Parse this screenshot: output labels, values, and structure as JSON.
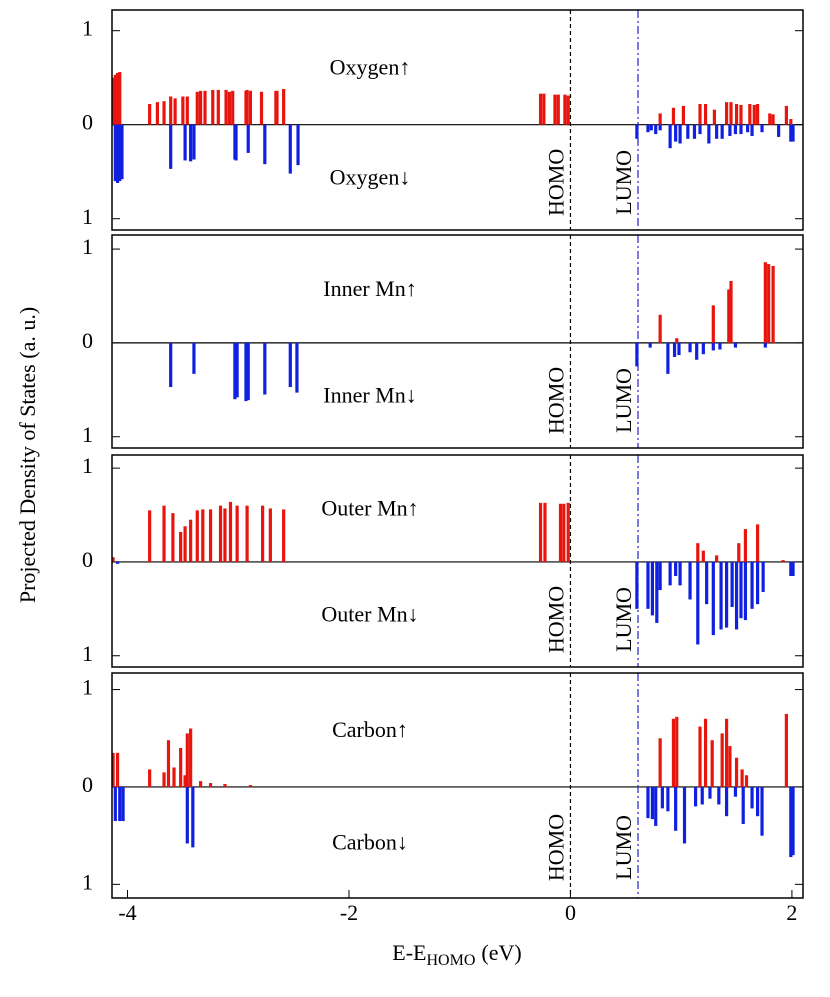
{
  "ylabel": "Projected Density of States (a. u.)",
  "chart_data": [
    {
      "type": "bar",
      "xlim": [
        -4.14,
        2.1
      ],
      "ylim": [
        -1.12,
        1.22
      ],
      "yticks": [
        {
          "value": -1,
          "label": "1"
        },
        0,
        1
      ],
      "markers": [
        {
          "x": 0,
          "label": "HOMO",
          "color": "#000000",
          "dash": "dashed"
        },
        {
          "x": 0.61,
          "label": "LUMO",
          "color": "#2222cc",
          "dash": "dashdot"
        }
      ],
      "series": [
        {
          "name": "Oxygen↑",
          "color": "#e8150f",
          "x": [
            -4.13,
            -4.11,
            -4.09,
            -4.07,
            -3.8,
            -3.73,
            -3.67,
            -3.61,
            -3.57,
            -3.5,
            -3.46,
            -3.37,
            -3.34,
            -3.3,
            -3.23,
            -3.18,
            -3.11,
            -3.08,
            -3.05,
            -2.93,
            -2.92,
            -2.89,
            -2.79,
            -2.66,
            -2.65,
            -2.59,
            -0.27,
            -0.24,
            -0.14,
            -0.11,
            -0.05,
            -0.02,
            0.81,
            0.93,
            1.02,
            1.17,
            1.22,
            1.3,
            1.41,
            1.45,
            1.5,
            1.54,
            1.62,
            1.66,
            1.69,
            1.8,
            1.83,
            1.95,
            1.99
          ],
          "values": [
            0.5,
            0.53,
            0.55,
            0.56,
            0.22,
            0.24,
            0.25,
            0.3,
            0.28,
            0.3,
            0.3,
            0.35,
            0.36,
            0.36,
            0.37,
            0.37,
            0.37,
            0.35,
            0.36,
            0.36,
            0.37,
            0.36,
            0.35,
            0.36,
            0.36,
            0.38,
            0.33,
            0.33,
            0.32,
            0.32,
            0.32,
            0.31,
            0.12,
            0.18,
            0.2,
            0.22,
            0.22,
            0.16,
            0.24,
            0.24,
            0.22,
            0.21,
            0.22,
            0.21,
            0.22,
            0.12,
            0.11,
            0.2,
            0.06
          ]
        },
        {
          "name": "Oxygen↓",
          "color": "#1020e0",
          "x": [
            -4.11,
            -4.09,
            -4.07,
            -4.05,
            -3.61,
            -3.48,
            -3.43,
            -3.4,
            -3.03,
            -3.02,
            -2.91,
            -2.76,
            -2.53,
            -2.46,
            0.6,
            0.7,
            0.73,
            0.77,
            0.81,
            0.9,
            0.95,
            0.99,
            1.06,
            1.12,
            1.17,
            1.25,
            1.32,
            1.37,
            1.44,
            1.49,
            1.54,
            1.6,
            1.64,
            1.73,
            1.88,
            1.99,
            2.01
          ],
          "values": [
            -0.6,
            -0.62,
            -0.6,
            -0.58,
            -0.47,
            -0.38,
            -0.39,
            -0.37,
            -0.37,
            -0.38,
            -0.3,
            -0.42,
            -0.52,
            -0.43,
            -0.15,
            -0.08,
            -0.06,
            -0.1,
            -0.06,
            -0.25,
            -0.18,
            -0.2,
            -0.15,
            -0.15,
            -0.1,
            -0.2,
            -0.15,
            -0.15,
            -0.12,
            -0.1,
            -0.1,
            -0.08,
            -0.12,
            -0.08,
            -0.13,
            -0.18,
            -0.18
          ]
        }
      ]
    },
    {
      "type": "bar",
      "xlim": [
        -4.14,
        2.1
      ],
      "ylim": [
        -1.12,
        1.15
      ],
      "yticks": [
        {
          "value": -1,
          "label": "1"
        },
        0,
        1
      ],
      "markers": [
        {
          "x": 0,
          "label": "HOMO",
          "color": "#000000",
          "dash": "dashed"
        },
        {
          "x": 0.61,
          "label": "LUMO",
          "color": "#2222cc",
          "dash": "dashdot"
        }
      ],
      "series": [
        {
          "name": "Inner Mn↑",
          "color": "#e8150f",
          "x": [
            0.81,
            0.96,
            1.29,
            1.43,
            1.45,
            1.76,
            1.79,
            1.83
          ],
          "values": [
            0.3,
            0.05,
            0.4,
            0.57,
            0.66,
            0.86,
            0.84,
            0.82
          ]
        },
        {
          "name": "Inner Mn↓",
          "color": "#1020e0",
          "x": [
            -3.61,
            -3.4,
            -3.03,
            -3.01,
            -2.93,
            -2.91,
            -2.76,
            -2.53,
            -2.47,
            0.6,
            0.72,
            0.88,
            0.94,
            0.98,
            1.08,
            1.14,
            1.2,
            1.29,
            1.35,
            1.49,
            1.76
          ],
          "values": [
            -0.47,
            -0.33,
            -0.6,
            -0.58,
            -0.62,
            -0.61,
            -0.55,
            -0.47,
            -0.53,
            -0.25,
            -0.05,
            -0.33,
            -0.15,
            -0.13,
            -0.1,
            -0.18,
            -0.12,
            -0.08,
            -0.07,
            -0.05,
            -0.05
          ]
        }
      ]
    },
    {
      "type": "bar",
      "xlim": [
        -4.14,
        2.1
      ],
      "ylim": [
        -1.12,
        1.14
      ],
      "yticks": [
        {
          "value": -1,
          "label": "1"
        },
        0,
        1
      ],
      "markers": [
        {
          "x": 0,
          "label": "HOMO",
          "color": "#000000",
          "dash": "dashed"
        },
        {
          "x": 0.61,
          "label": "LUMO",
          "color": "#2222cc",
          "dash": "dashdot"
        }
      ],
      "series": [
        {
          "name": "Outer Mn↑",
          "color": "#e8150f",
          "x": [
            -4.13,
            -3.8,
            -3.67,
            -3.59,
            -3.52,
            -3.48,
            -3.43,
            -3.37,
            -3.32,
            -3.25,
            -3.16,
            -3.12,
            -3.07,
            -3.01,
            -2.92,
            -2.78,
            -2.71,
            -2.59,
            -0.27,
            -0.23,
            -0.09,
            -0.06,
            -0.02,
            1.15,
            1.2,
            1.32,
            1.52,
            1.58,
            1.69,
            1.92
          ],
          "values": [
            0.05,
            0.55,
            0.6,
            0.52,
            0.32,
            0.38,
            0.45,
            0.55,
            0.56,
            0.56,
            0.6,
            0.57,
            0.64,
            0.6,
            0.6,
            0.6,
            0.57,
            0.56,
            0.63,
            0.63,
            0.62,
            0.62,
            0.63,
            0.2,
            0.12,
            0.07,
            0.2,
            0.35,
            0.4,
            0.02
          ]
        },
        {
          "name": "Outer Mn↓",
          "color": "#1020e0",
          "x": [
            -4.09,
            0.6,
            0.7,
            0.74,
            0.78,
            0.81,
            0.9,
            0.95,
            0.99,
            1.08,
            1.15,
            1.23,
            1.29,
            1.36,
            1.41,
            1.46,
            1.5,
            1.54,
            1.58,
            1.64,
            1.69,
            1.74,
            1.99,
            2.01
          ],
          "values": [
            -0.02,
            -0.5,
            -0.5,
            -0.57,
            -0.65,
            -0.3,
            -0.25,
            -0.15,
            -0.25,
            -0.4,
            -0.88,
            -0.45,
            -0.78,
            -0.72,
            -0.7,
            -0.48,
            -0.72,
            -0.6,
            -0.62,
            -0.5,
            -0.45,
            -0.32,
            -0.15,
            -0.15
          ]
        }
      ]
    },
    {
      "type": "bar",
      "xlim": [
        -4.14,
        2.1
      ],
      "ylim": [
        -1.14,
        1.17
      ],
      "yticks": [
        {
          "value": -1,
          "label": "1"
        },
        0,
        1
      ],
      "xticks": [
        -4,
        -2,
        0,
        2
      ],
      "xlabel": [
        "E-E",
        "HOMO",
        "(eV)"
      ],
      "markers": [
        {
          "x": 0,
          "label": "HOMO",
          "color": "#000000",
          "dash": "dashed"
        },
        {
          "x": 0.61,
          "label": "LUMO",
          "color": "#2222cc",
          "dash": "dashdot"
        }
      ],
      "series": [
        {
          "name": "Carbon↑",
          "color": "#e8150f",
          "x": [
            -4.13,
            -4.09,
            -3.8,
            -3.67,
            -3.63,
            -3.58,
            -3.52,
            -3.48,
            -3.46,
            -3.43,
            -3.34,
            -3.25,
            -3.12,
            -2.89,
            0.81,
            0.93,
            0.96,
            1.17,
            1.22,
            1.28,
            1.37,
            1.41,
            1.44,
            1.5,
            1.55,
            1.59,
            1.95
          ],
          "values": [
            0.35,
            0.35,
            0.18,
            0.15,
            0.48,
            0.2,
            0.4,
            0.12,
            0.55,
            0.6,
            0.06,
            0.04,
            0.03,
            0.02,
            0.5,
            0.7,
            0.72,
            0.62,
            0.7,
            0.48,
            0.55,
            0.7,
            0.42,
            0.3,
            0.18,
            0.12,
            0.75
          ]
        },
        {
          "name": "Carbon↓",
          "color": "#1020e0",
          "x": [
            -4.11,
            -4.07,
            -4.04,
            -3.46,
            -3.41,
            0.7,
            0.74,
            0.77,
            0.83,
            0.88,
            0.95,
            1.03,
            1.13,
            1.19,
            1.26,
            1.34,
            1.41,
            1.49,
            1.56,
            1.64,
            1.69,
            1.73,
            1.99,
            2.01
          ],
          "values": [
            -0.35,
            -0.35,
            -0.35,
            -0.58,
            -0.62,
            -0.32,
            -0.33,
            -0.4,
            -0.22,
            -0.25,
            -0.45,
            -0.58,
            -0.2,
            -0.18,
            -0.12,
            -0.18,
            -0.3,
            -0.1,
            -0.38,
            -0.22,
            -0.3,
            -0.5,
            -0.72,
            -0.7
          ]
        }
      ]
    }
  ]
}
